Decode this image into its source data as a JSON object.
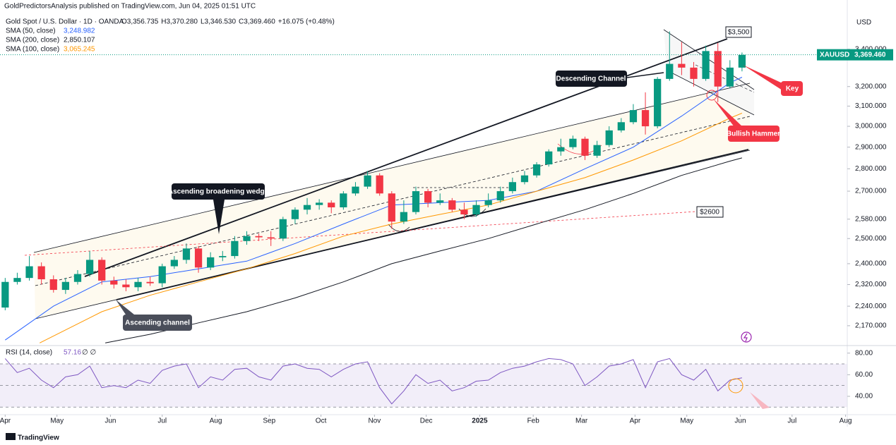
{
  "header": {
    "published": "GoldPredictorsAnalysis published on TradingView.com, Jun 04, 2025 01:51 UTC"
  },
  "chart_data": {
    "type": "candlestick",
    "title": "Gold Spot / U.S. Dollar · 1D · OANDA",
    "ohlc_readout": [
      "O3,356.735",
      "H3,370.280",
      "L3,346.530",
      "C3,369.460",
      "+16.075 (+0.48%)"
    ],
    "currency": "USD",
    "symbol": "XAUUSD",
    "last_price": 3369.46,
    "last_price_label": "3,369.460",
    "log_scale": true,
    "grid": false,
    "xlim": [
      -3,
      488
    ],
    "xticks": [
      {
        "value": 0,
        "label": "Apr"
      },
      {
        "value": 30,
        "label": "May"
      },
      {
        "value": 61,
        "label": "Jun"
      },
      {
        "value": 91,
        "label": "Jul"
      },
      {
        "value": 122,
        "label": "Aug"
      },
      {
        "value": 153,
        "label": "Sep"
      },
      {
        "value": 183,
        "label": "Oct"
      },
      {
        "value": 214,
        "label": "Nov"
      },
      {
        "value": 244,
        "label": "Dec"
      },
      {
        "value": 275,
        "label": "2025"
      },
      {
        "value": 306,
        "label": "Feb"
      },
      {
        "value": 334,
        "label": "Mar"
      },
      {
        "value": 365,
        "label": "Apr"
      },
      {
        "value": 395,
        "label": "May"
      },
      {
        "value": 426,
        "label": "Jun"
      },
      {
        "value": 456,
        "label": "Jul"
      },
      {
        "value": 487,
        "label": "Aug"
      }
    ],
    "ylim": [
      2106,
      3641
    ],
    "yticks": [
      {
        "value": 3400,
        "label": "3,400.000"
      },
      {
        "value": 3200,
        "label": "3,200.000"
      },
      {
        "value": 3100,
        "label": "3,100.000"
      },
      {
        "value": 3000,
        "label": "3,000.000"
      },
      {
        "value": 2900,
        "label": "2,900.000"
      },
      {
        "value": 2800,
        "label": "2,800.000"
      },
      {
        "value": 2700,
        "label": "2,700.000"
      },
      {
        "value": 2580,
        "label": "2,580.000"
      },
      {
        "value": 2500,
        "label": "2,500.000"
      },
      {
        "value": 2400,
        "label": "2,400.000"
      },
      {
        "value": 2320,
        "label": "2,320.000"
      },
      {
        "value": 2240,
        "label": "2,240.000"
      },
      {
        "value": 2170,
        "label": "2,170.000"
      }
    ],
    "candles": {
      "up_color": "#089981",
      "down_color": "#f23645",
      "x": [
        0,
        7,
        14,
        21,
        28,
        35,
        42,
        49,
        56,
        63,
        70,
        77,
        84,
        91,
        98,
        105,
        112,
        119,
        126,
        133,
        140,
        147,
        154,
        161,
        168,
        175,
        182,
        189,
        196,
        203,
        210,
        217,
        224,
        231,
        238,
        245,
        252,
        259,
        266,
        273,
        280,
        287,
        294,
        301,
        308,
        315,
        322,
        329,
        336,
        343,
        350,
        357,
        364,
        371,
        378,
        385,
        392,
        399,
        406,
        413,
        420,
        427
      ],
      "open": [
        2235,
        2330,
        2345,
        2390,
        2340,
        2300,
        2330,
        2360,
        2415,
        2335,
        2320,
        2310,
        2330,
        2325,
        2390,
        2415,
        2460,
        2385,
        2425,
        2430,
        2490,
        2510,
        2505,
        2500,
        2580,
        2620,
        2640,
        2650,
        2630,
        2690,
        2720,
        2770,
        2690,
        2570,
        2610,
        2700,
        2650,
        2660,
        2620,
        2600,
        2640,
        2660,
        2700,
        2740,
        2770,
        2820,
        2880,
        2900,
        2940,
        2860,
        2910,
        2980,
        3020,
        3080,
        3000,
        3240,
        3320,
        3300,
        3240,
        3390,
        3200,
        3300
      ],
      "high": [
        2345,
        2365,
        2430,
        2405,
        2355,
        2345,
        2375,
        2450,
        2425,
        2350,
        2340,
        2345,
        2350,
        2400,
        2430,
        2480,
        2470,
        2445,
        2450,
        2510,
        2530,
        2520,
        2530,
        2590,
        2630,
        2670,
        2665,
        2660,
        2700,
        2740,
        2790,
        2780,
        2700,
        2660,
        2720,
        2710,
        2690,
        2670,
        2650,
        2660,
        2690,
        2720,
        2760,
        2790,
        2830,
        2890,
        2940,
        2955,
        2950,
        2930,
        3000,
        3040,
        3110,
        3170,
        3250,
        3500,
        3440,
        3330,
        3420,
        3435,
        3340,
        3382
      ],
      "low": [
        2225,
        2320,
        2335,
        2320,
        2290,
        2285,
        2320,
        2350,
        2320,
        2305,
        2295,
        2295,
        2315,
        2310,
        2380,
        2400,
        2365,
        2375,
        2410,
        2420,
        2475,
        2490,
        2470,
        2490,
        2560,
        2600,
        2620,
        2605,
        2620,
        2680,
        2710,
        2680,
        2540,
        2560,
        2600,
        2630,
        2640,
        2610,
        2580,
        2590,
        2630,
        2650,
        2690,
        2730,
        2760,
        2810,
        2860,
        2890,
        2840,
        2850,
        2900,
        2970,
        3010,
        2960,
        2990,
        3230,
        3260,
        3200,
        3230,
        3120,
        3190,
        3280
      ],
      "close": [
        2330,
        2345,
        2390,
        2340,
        2300,
        2330,
        2360,
        2415,
        2335,
        2320,
        2310,
        2330,
        2325,
        2390,
        2415,
        2460,
        2385,
        2425,
        2430,
        2490,
        2510,
        2505,
        2500,
        2580,
        2620,
        2640,
        2650,
        2630,
        2690,
        2720,
        2770,
        2690,
        2570,
        2610,
        2700,
        2650,
        2660,
        2620,
        2600,
        2640,
        2660,
        2700,
        2740,
        2770,
        2820,
        2880,
        2900,
        2940,
        2860,
        2910,
        2980,
        3020,
        3080,
        3000,
        3240,
        3320,
        3300,
        3240,
        3390,
        3200,
        3300,
        3369
      ]
    },
    "series": [
      {
        "name": "SMA (50, close)",
        "value_label": "3,248.982",
        "color": "#2962ff",
        "x": [
          0,
          28,
          56,
          84,
          112,
          140,
          168,
          196,
          224,
          252,
          280,
          308,
          336,
          364,
          392,
          420,
          427
        ],
        "values": [
          2120,
          2240,
          2330,
          2350,
          2380,
          2410,
          2480,
          2560,
          2640,
          2650,
          2660,
          2700,
          2800,
          2900,
          3050,
          3220,
          3249
        ]
      },
      {
        "name": "SMA (200, close)",
        "value_label": "2,850.107",
        "color": "#131722",
        "x": [
          58,
          84,
          112,
          140,
          168,
          196,
          224,
          252,
          280,
          308,
          336,
          364,
          392,
          420,
          427
        ],
        "values": [
          2110,
          2140,
          2180,
          2220,
          2270,
          2330,
          2400,
          2450,
          2500,
          2560,
          2620,
          2690,
          2770,
          2835,
          2850
        ]
      },
      {
        "name": "SMA (100, close)",
        "value_label": "3,065.245",
        "color": "#ff9800",
        "x": [
          20,
          56,
          84,
          112,
          140,
          168,
          196,
          224,
          252,
          280,
          308,
          336,
          364,
          392,
          420,
          427
        ],
        "values": [
          2110,
          2220,
          2280,
          2330,
          2380,
          2440,
          2510,
          2560,
          2600,
          2640,
          2700,
          2760,
          2840,
          2930,
          3040,
          3065
        ]
      }
    ],
    "annotations": [
      "$3,500",
      "Descending Channel",
      "Key",
      "Bullish Hammer",
      "Ascending broadening wedge",
      "Ascending channel",
      "$2600"
    ]
  },
  "rsi": {
    "title": "RSI (14, close)",
    "value_label": "57.16",
    "flags": "∅ ∅",
    "color": "#7e57c2",
    "ylim": [
      23,
      87
    ],
    "yticks": [
      {
        "value": 80,
        "label": "80.00"
      },
      {
        "value": 60,
        "label": "60.00"
      },
      {
        "value": 40,
        "label": "40.00"
      }
    ],
    "bands": [
      70,
      50,
      30
    ],
    "x": [
      0,
      7,
      14,
      21,
      28,
      35,
      42,
      49,
      56,
      63,
      70,
      77,
      84,
      91,
      98,
      105,
      112,
      119,
      126,
      133,
      140,
      147,
      154,
      161,
      168,
      175,
      182,
      189,
      196,
      203,
      210,
      217,
      224,
      231,
      238,
      245,
      252,
      259,
      266,
      273,
      280,
      287,
      294,
      301,
      308,
      315,
      322,
      329,
      336,
      343,
      350,
      357,
      364,
      371,
      378,
      385,
      392,
      399,
      406,
      413,
      420,
      427
    ],
    "values": [
      75,
      62,
      66,
      55,
      48,
      58,
      60,
      68,
      48,
      50,
      48,
      55,
      52,
      64,
      68,
      70,
      48,
      58,
      55,
      65,
      66,
      58,
      55,
      68,
      70,
      66,
      65,
      58,
      65,
      70,
      72,
      48,
      33,
      45,
      60,
      52,
      55,
      45,
      48,
      54,
      55,
      62,
      66,
      68,
      72,
      75,
      74,
      70,
      50,
      58,
      68,
      70,
      74,
      48,
      72,
      75,
      60,
      55,
      65,
      45,
      55,
      57.16
    ]
  },
  "footer": "TradingView"
}
